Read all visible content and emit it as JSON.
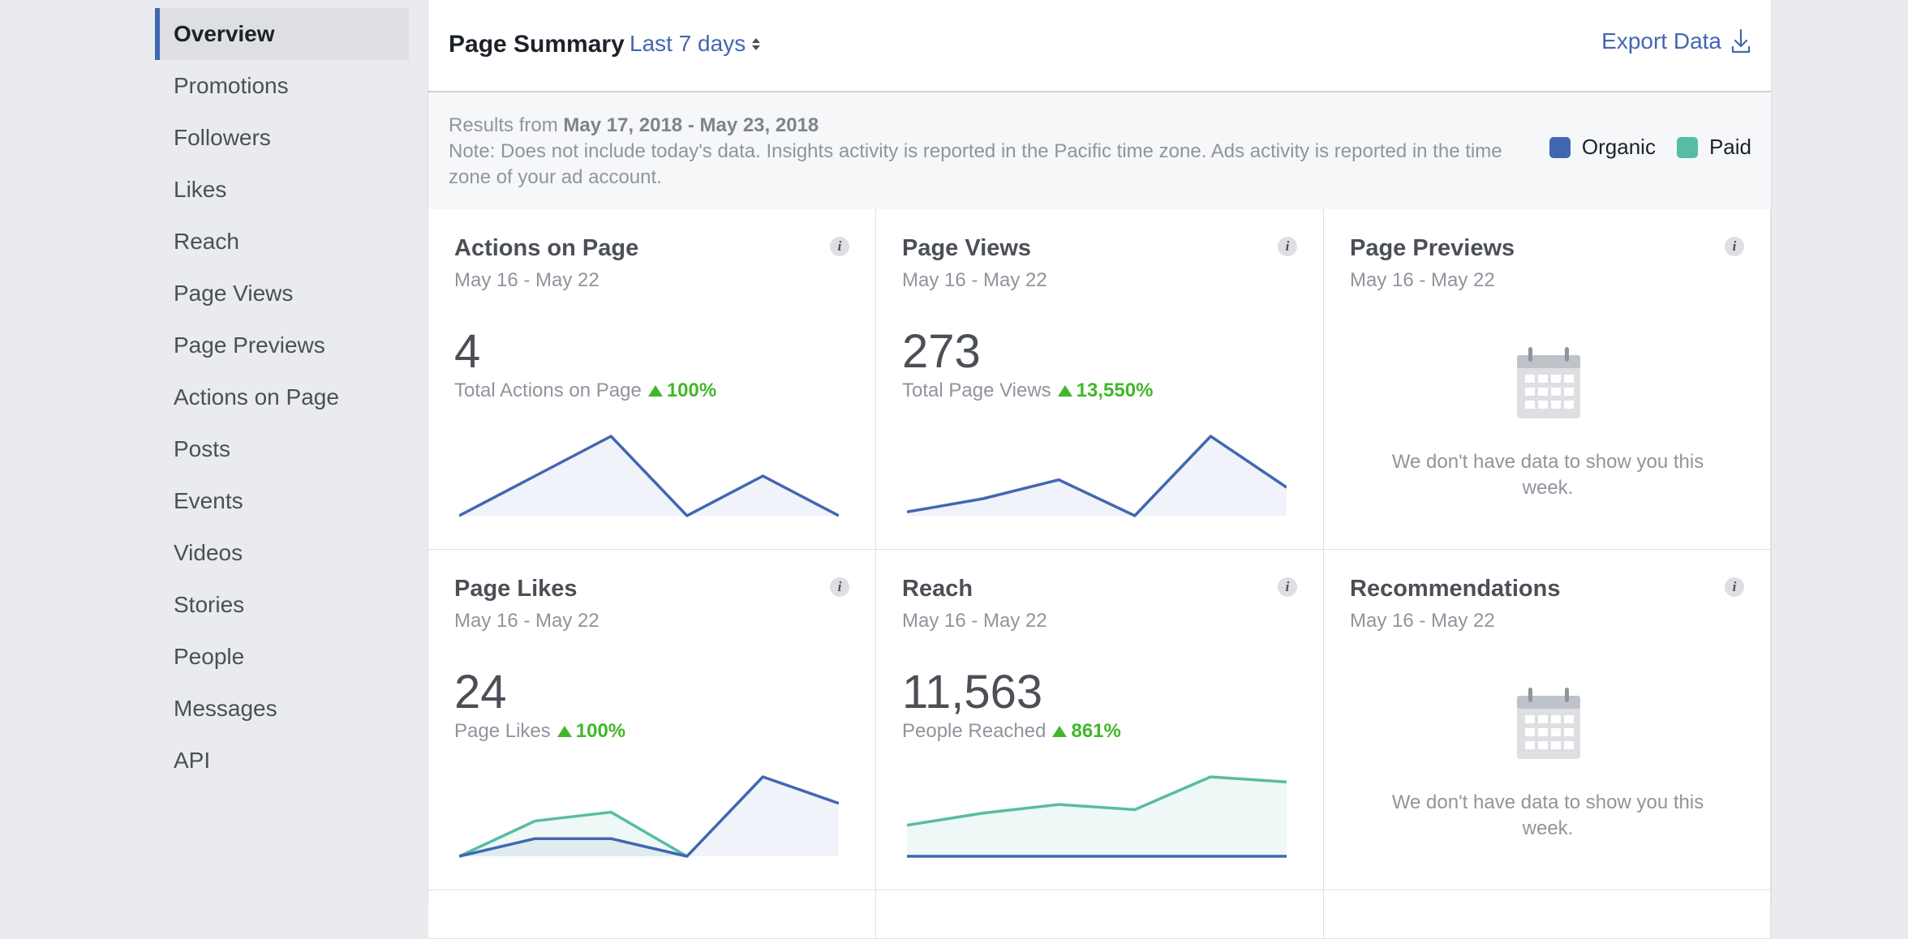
{
  "sidebar": {
    "items": [
      {
        "label": "Overview",
        "active": true
      },
      {
        "label": "Promotions"
      },
      {
        "label": "Followers"
      },
      {
        "label": "Likes"
      },
      {
        "label": "Reach"
      },
      {
        "label": "Page Views"
      },
      {
        "label": "Page Previews"
      },
      {
        "label": "Actions on Page"
      },
      {
        "label": "Posts"
      },
      {
        "label": "Events"
      },
      {
        "label": "Videos"
      },
      {
        "label": "Stories"
      },
      {
        "label": "People"
      },
      {
        "label": "Messages"
      },
      {
        "label": "API"
      }
    ]
  },
  "header": {
    "title": "Page Summary",
    "range": "Last 7 days",
    "export_label": "Export Data"
  },
  "notes": {
    "results_prefix": "Results from ",
    "results_range": "May 17, 2018 - May 23, 2018",
    "note": "Note: Does not include today's data. Insights activity is reported in the Pacific time zone. Ads activity is reported in the time zone of your ad account."
  },
  "legend": {
    "organic_label": "Organic",
    "paid_label": "Paid",
    "organic_color": "#4267b2",
    "paid_color": "#57bca3"
  },
  "cards": [
    {
      "title": "Actions on Page",
      "date": "May 16 - May 22",
      "value": "4",
      "sub_label": "Total Actions on Page",
      "delta": "100%",
      "organic": [
        0,
        1,
        2,
        0,
        1,
        0
      ],
      "paid": null
    },
    {
      "title": "Page Views",
      "date": "May 16 - May 22",
      "value": "273",
      "sub_label": "Total Page Views",
      "delta": "13,550%",
      "organic": [
        2,
        9,
        19,
        0,
        42,
        15
      ],
      "paid": null
    },
    {
      "title": "Page Previews",
      "date": "May 16 - May 22",
      "empty_text": "We don't have data to show you this week."
    },
    {
      "title": "Page Likes",
      "date": "May 16 - May 22",
      "value": "24",
      "sub_label": "Page Likes",
      "delta": "100%",
      "organic": [
        0,
        2,
        2,
        0,
        9,
        6
      ],
      "paid": [
        0,
        4,
        5,
        0,
        null,
        null
      ]
    },
    {
      "title": "Reach",
      "date": "May 16 - May 22",
      "value": "11,563",
      "sub_label": "People Reached",
      "delta": "861%",
      "organic": [
        0,
        0,
        0,
        0,
        0,
        0
      ],
      "paid": [
        18,
        25,
        30,
        27,
        46,
        43
      ]
    },
    {
      "title": "Recommendations",
      "date": "May 16 - May 22",
      "empty_text": "We don't have data to show you this week."
    }
  ]
}
